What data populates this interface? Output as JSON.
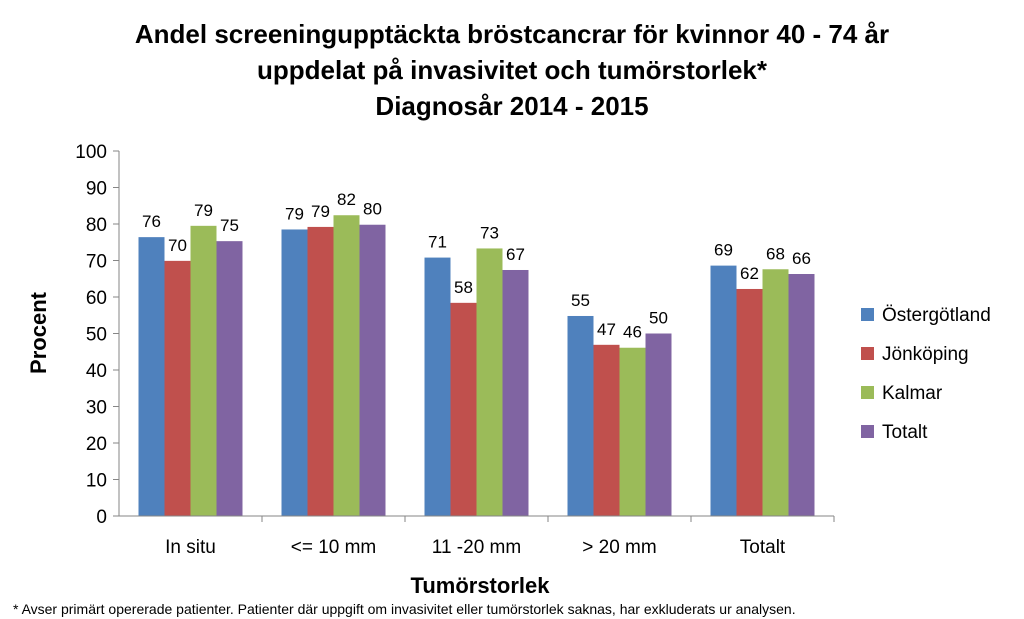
{
  "chart_data": {
    "type": "bar",
    "title_lines": [
      "Andel screeningupptäckta bröstcancrar för kvinnor 40 - 74 år",
      "uppdelat på invasivitet och tumörstorlek*",
      "Diagnosår 2014 - 2015"
    ],
    "xlabel": "Tumörstorlek",
    "ylabel": "Procent",
    "ylim": [
      0,
      100
    ],
    "yticks": [
      0,
      10,
      20,
      30,
      40,
      50,
      60,
      70,
      80,
      90,
      100
    ],
    "grid": false,
    "legend_position": "right",
    "categories": [
      "In situ",
      "<= 10 mm",
      "11 -20 mm",
      "> 20 mm",
      "Totalt"
    ],
    "series": [
      {
        "name": "Östergötland",
        "color": "#4F81BD",
        "values": [
          76.4,
          78.5,
          70.8,
          54.8,
          68.6
        ],
        "labels": [
          "76",
          "79",
          "71",
          "55",
          "69"
        ]
      },
      {
        "name": "Jönköping",
        "color": "#C0504D",
        "values": [
          69.9,
          79.2,
          58.4,
          46.9,
          62.2
        ],
        "labels": [
          "70",
          "79",
          "58",
          "47",
          "62"
        ]
      },
      {
        "name": "Kalmar",
        "color": "#9BBB59",
        "values": [
          79.5,
          82.4,
          73.3,
          46.1,
          67.6
        ],
        "labels": [
          "79",
          "82",
          "73",
          "46",
          "68"
        ]
      },
      {
        "name": "Totalt",
        "color": "#8064A2",
        "values": [
          75.3,
          79.8,
          67.4,
          50.0,
          66.3
        ],
        "labels": [
          "75",
          "80",
          "67",
          "50",
          "66"
        ]
      }
    ],
    "footnote": "* Avser primärt opererade patienter. Patienter där  uppgift om invasivitet eller tumörstorlek saknas, har exkluderats ur analysen."
  }
}
